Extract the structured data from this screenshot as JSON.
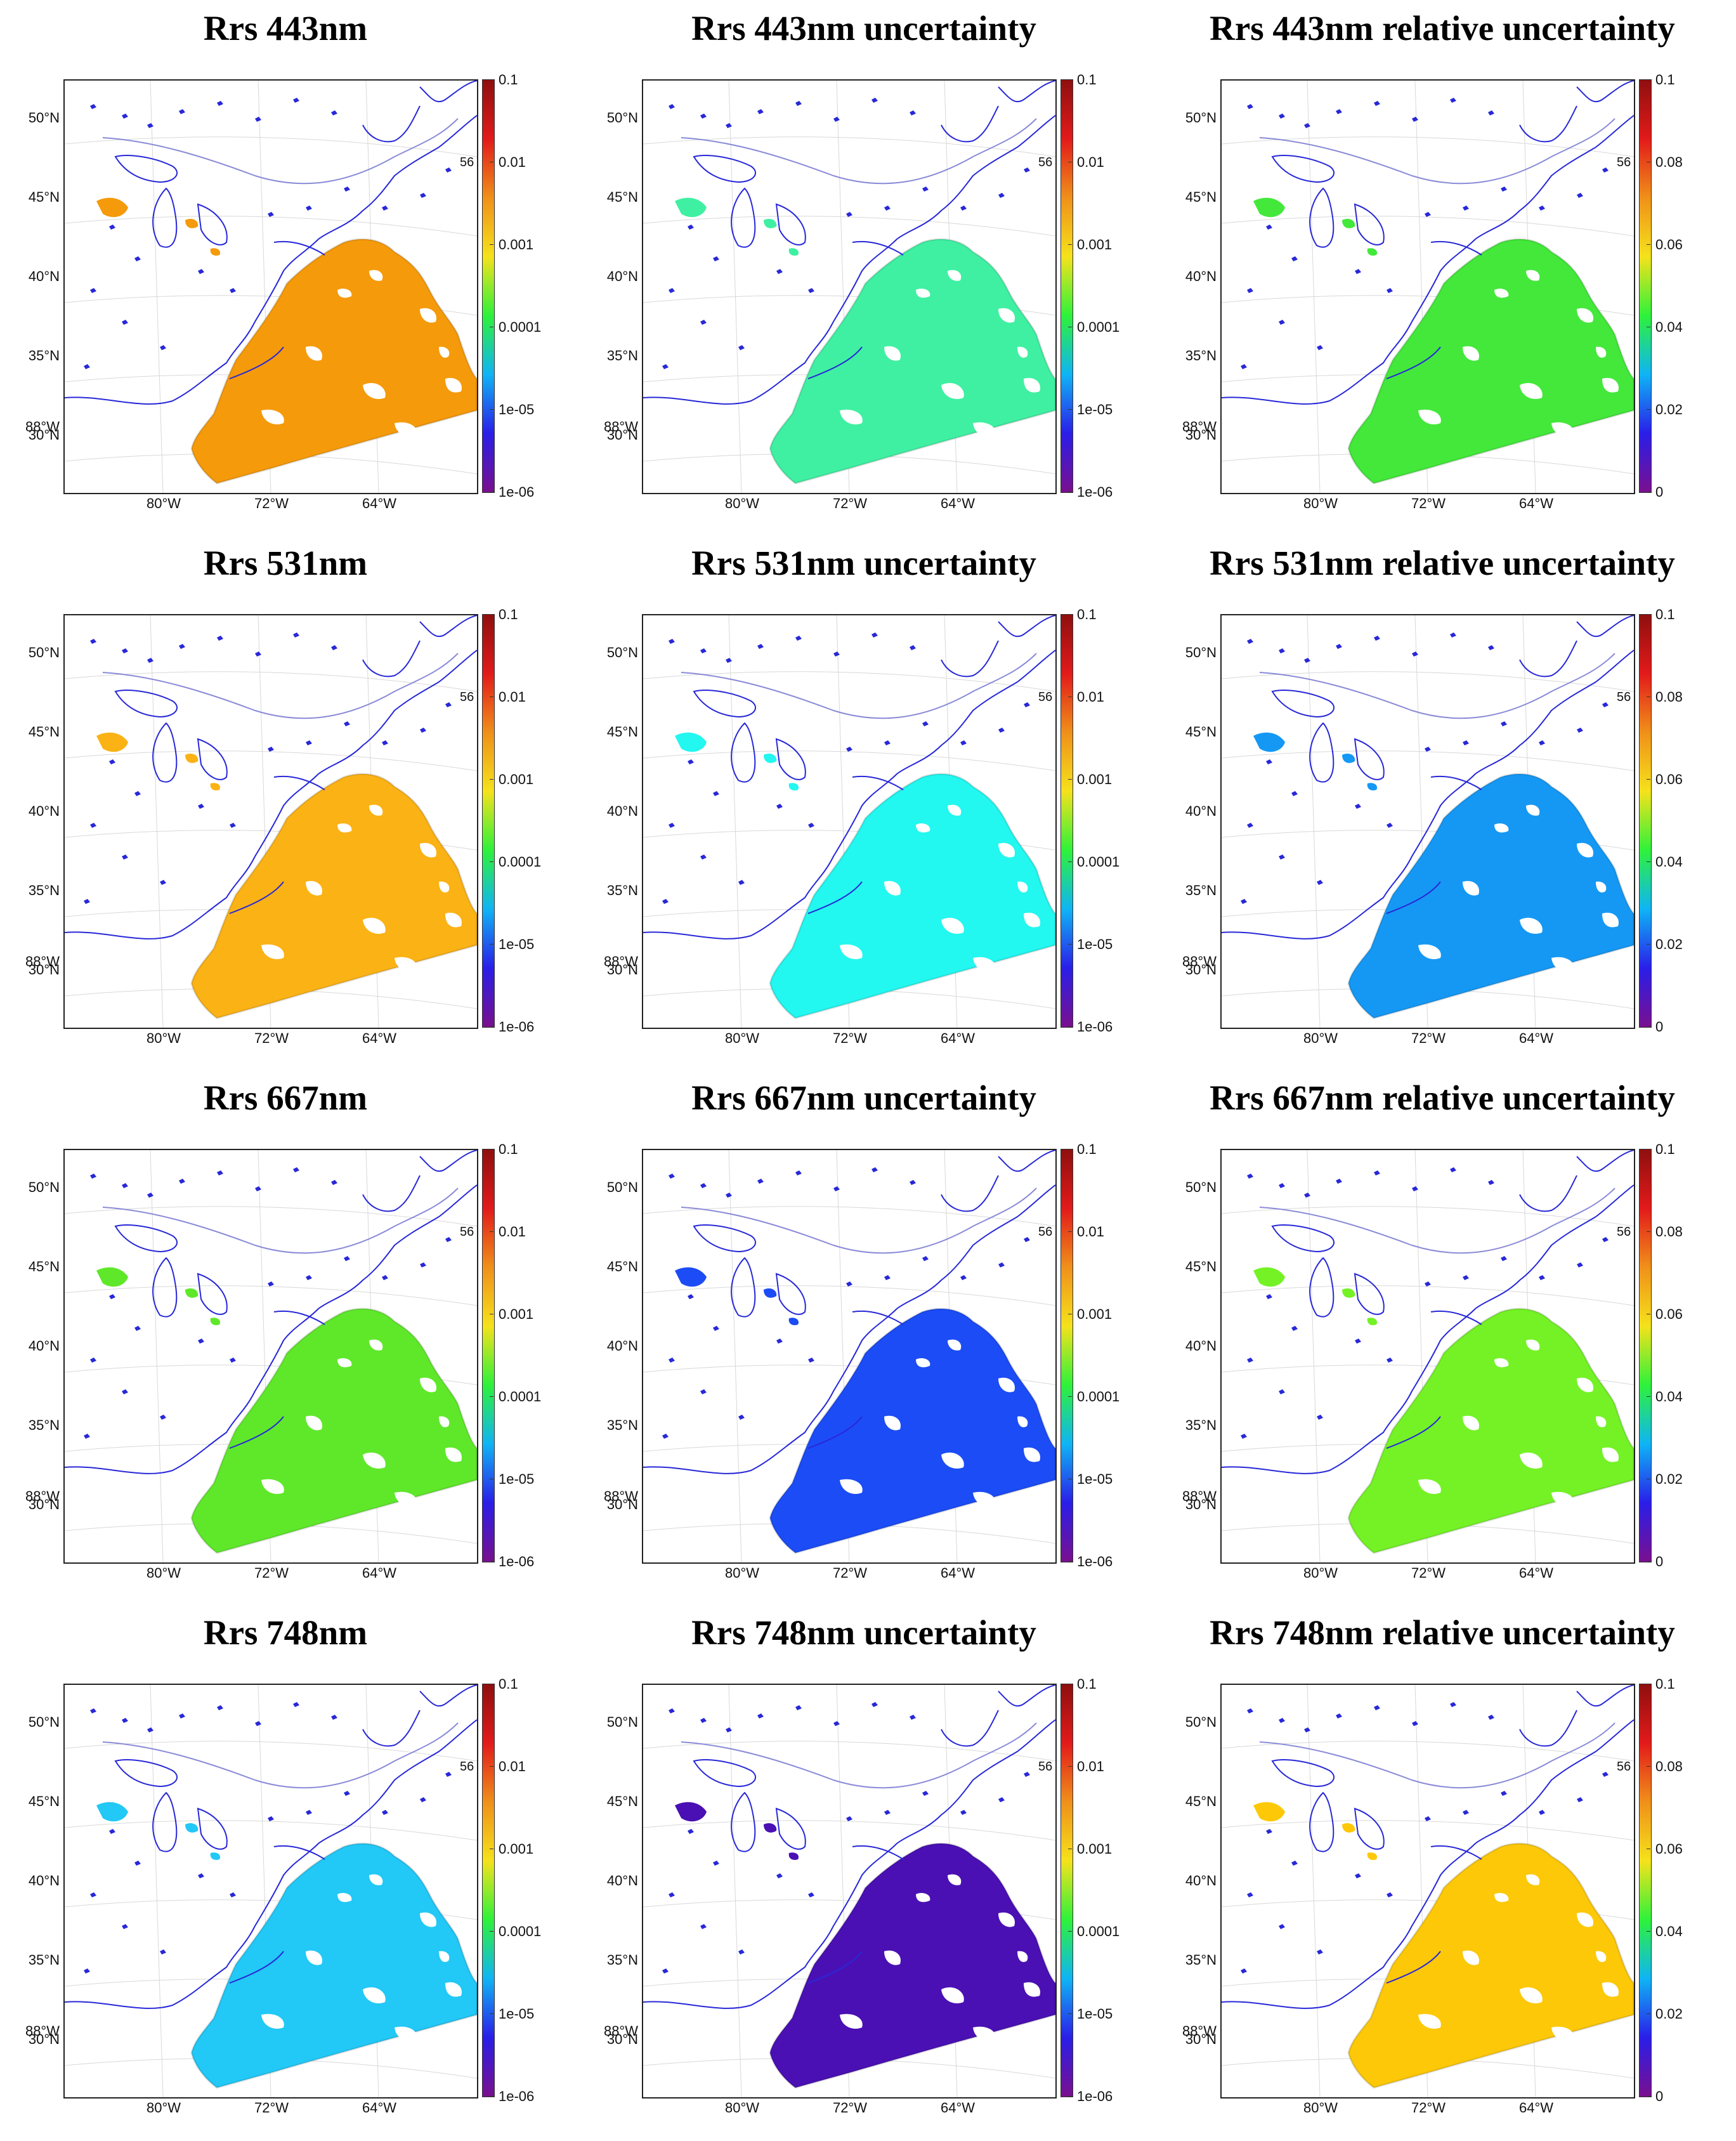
{
  "figure": {
    "panels": [
      {
        "title": "Rrs 443nm",
        "colorbar": "log",
        "fill": "#f59a0a"
      },
      {
        "title": "Rrs 443nm uncertainty",
        "colorbar": "log",
        "fill": "#3ff0a2"
      },
      {
        "title": "Rrs 443nm relative uncertainty",
        "colorbar": "linear",
        "fill": "#43e83a"
      },
      {
        "title": "Rrs 531nm",
        "colorbar": "log",
        "fill": "#fbb215"
      },
      {
        "title": "Rrs 531nm uncertainty",
        "colorbar": "log",
        "fill": "#22f7f0"
      },
      {
        "title": "Rrs 531nm relative uncertainty",
        "colorbar": "linear",
        "fill": "#1598f4"
      },
      {
        "title": "Rrs 667nm",
        "colorbar": "log",
        "fill": "#5fe82a"
      },
      {
        "title": "Rrs 667nm uncertainty",
        "colorbar": "log",
        "fill": "#1c4cf5"
      },
      {
        "title": "Rrs 667nm relative uncertainty",
        "colorbar": "linear",
        "fill": "#74f226"
      },
      {
        "title": "Rrs 748nm",
        "colorbar": "log",
        "fill": "#22c8f6"
      },
      {
        "title": "Rrs 748nm uncertainty",
        "colorbar": "log",
        "fill": "#4a10b4"
      },
      {
        "title": "Rrs 748nm relative uncertainty",
        "colorbar": "linear",
        "fill": "#fcc808"
      }
    ],
    "lat_labels": [
      "50°N",
      "45°N",
      "40°N",
      "35°N",
      "30°N"
    ],
    "lon_labels": [
      "80°W",
      "72°W",
      "64°W"
    ],
    "extra_lon_label": "88°W",
    "edge_mark": "56",
    "colorbars": {
      "log": [
        "0.1",
        "0.01",
        "0.001",
        "0.0001",
        "1e-05",
        "1e-06"
      ],
      "linear": [
        "0.1",
        "0.08",
        "0.06",
        "0.04",
        "0.02",
        "0"
      ]
    },
    "colors": {
      "coast": "#2828d8",
      "contour": "#8a8ad8",
      "graticule": "#d8d8d8",
      "jet": [
        "#7a0f8f",
        "#2a1ee8",
        "#0fb4f5",
        "#2ef23a",
        "#f5e21b",
        "#f0901a",
        "#e21a1a",
        "#8f0f0f"
      ]
    }
  }
}
